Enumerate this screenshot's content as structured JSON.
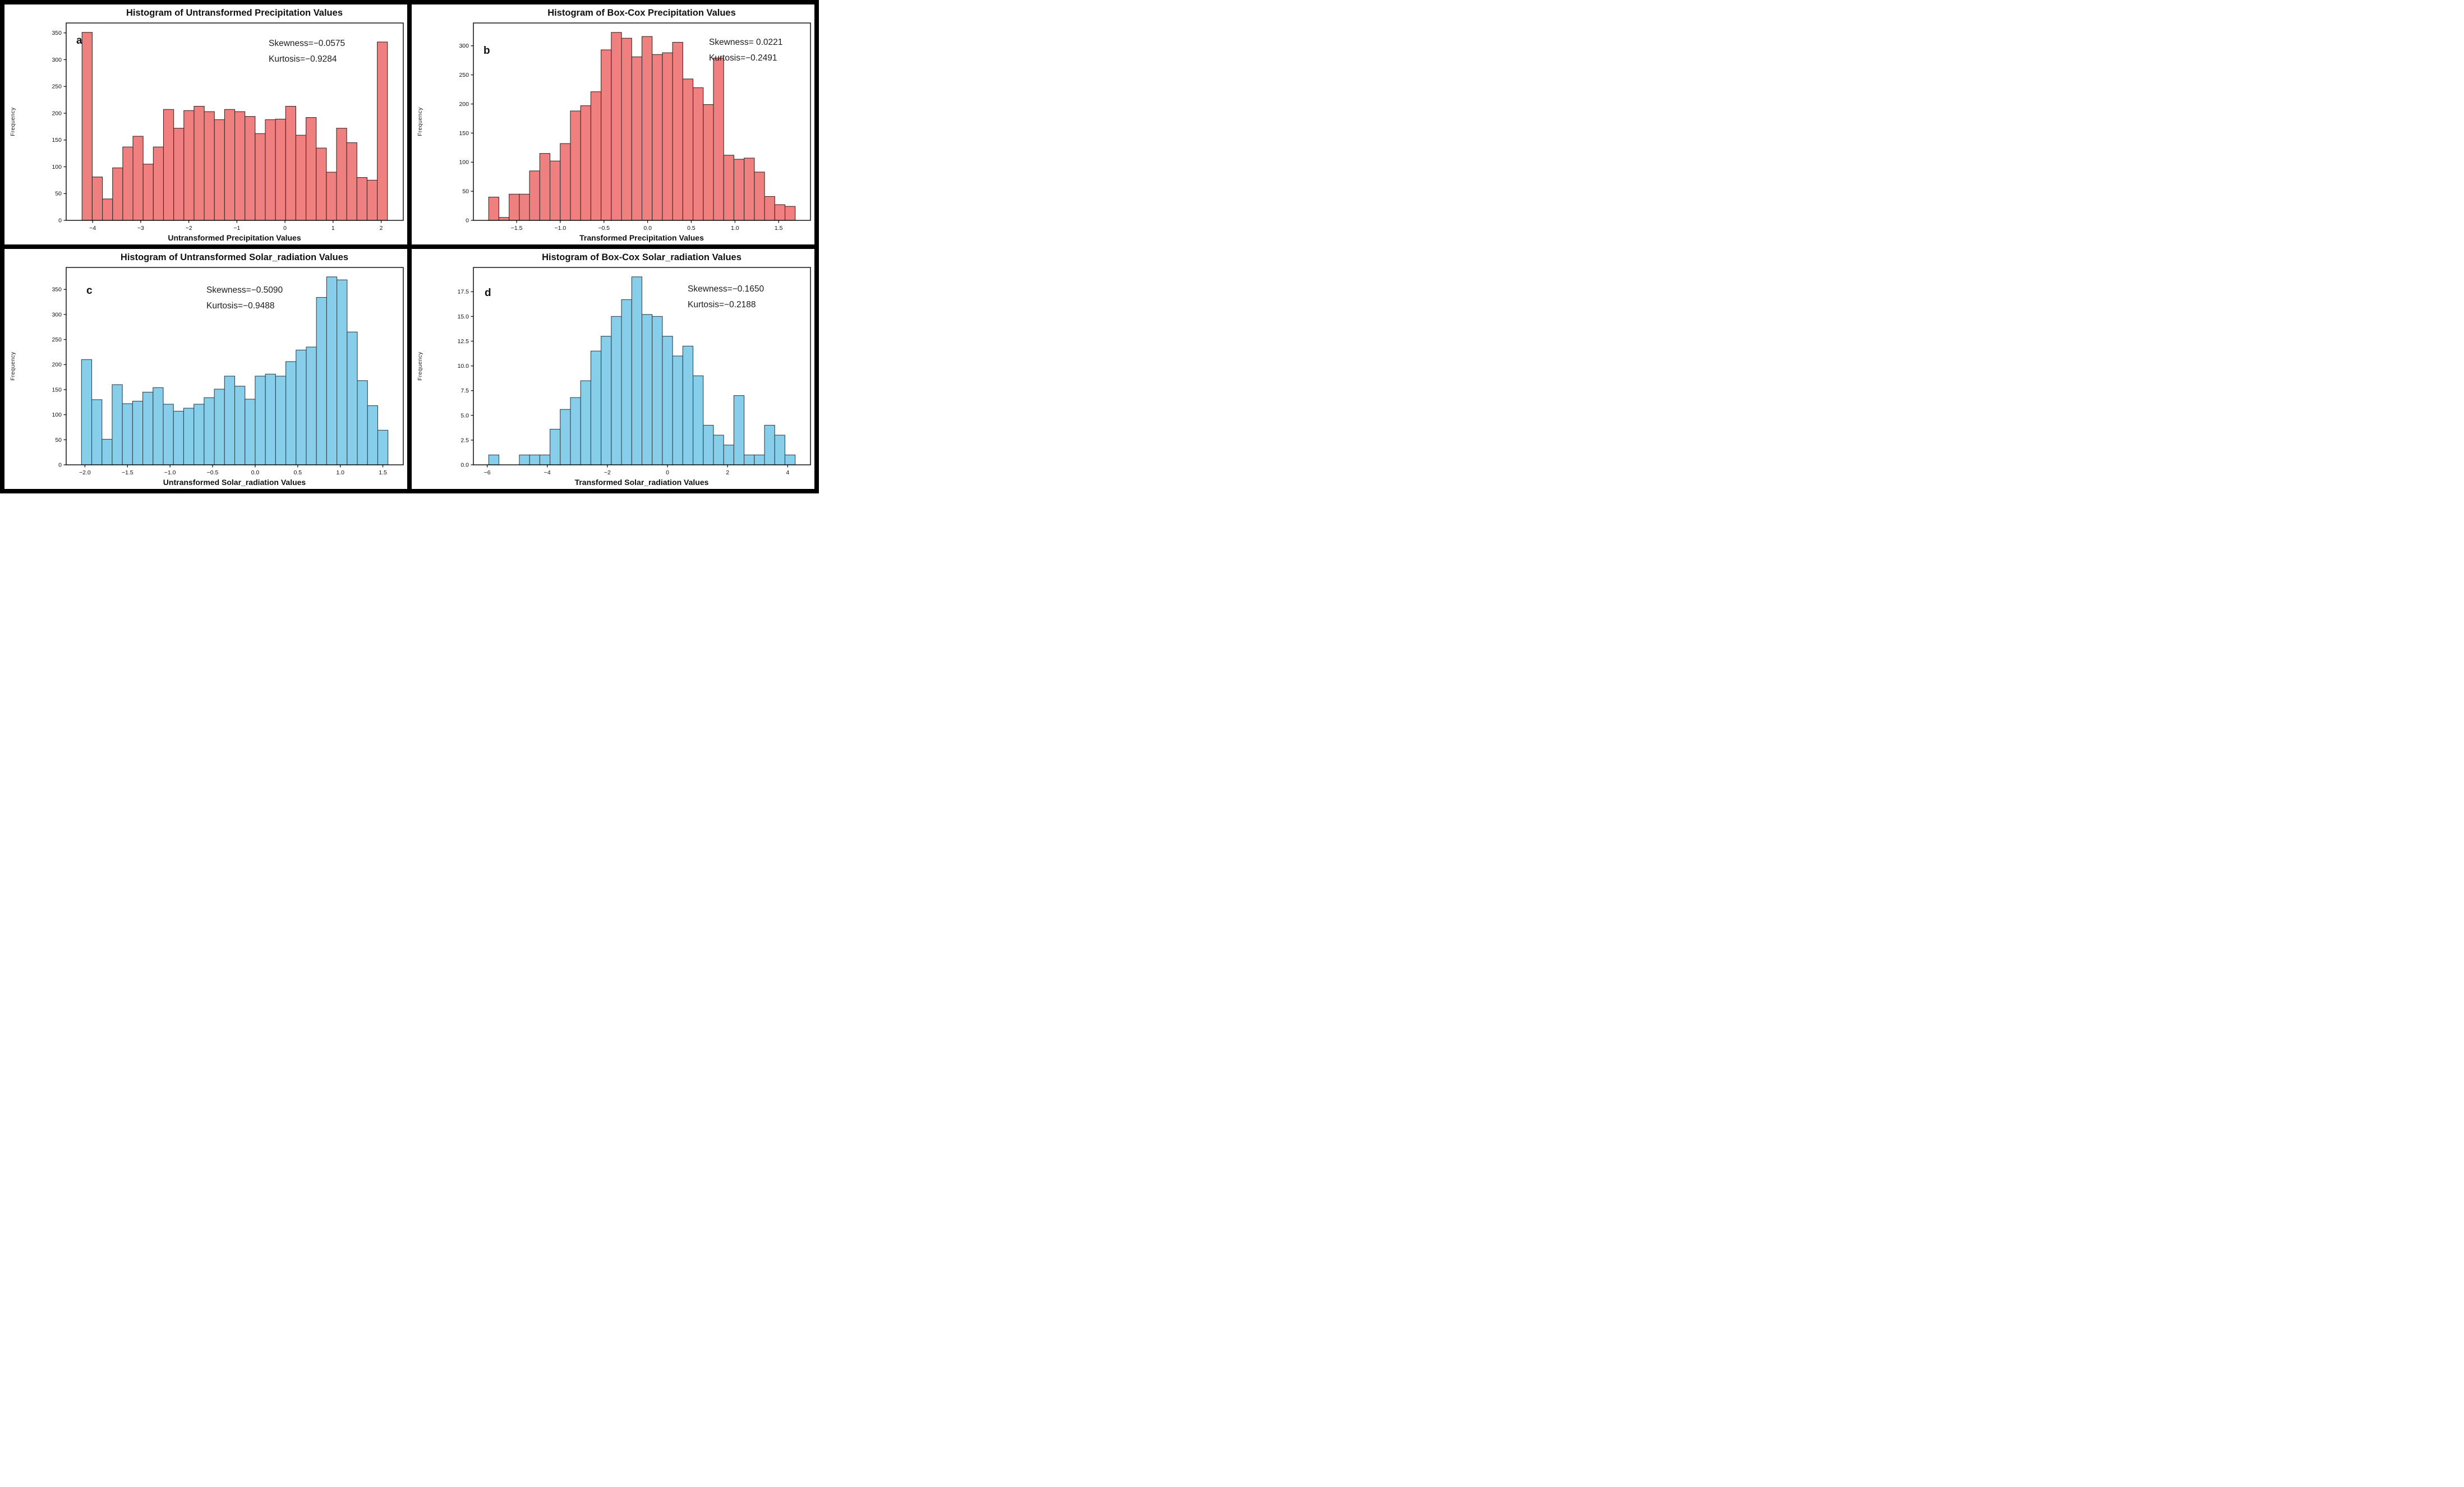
{
  "figure_title": "2x2 histogram grid of precipitation and solar radiation values before and after Box-Cox transformation",
  "accent_colors": {
    "red_fill": "#f08080",
    "red_edge": "#3a2a2a",
    "blue_fill": "#87ceeb",
    "blue_edge": "#35454e",
    "frame": "#000000"
  },
  "chart_data": [
    {
      "type": "bar",
      "panel_label": "a",
      "title": "Histogram of Untransformed Precipitation Values",
      "xlabel": "Untransformed Precipitation Values",
      "ylabel": "Frequency",
      "skewness_label": "Skewness=−0.0575",
      "kurtosis_label": "Kurtosis=−0.9284",
      "bar_color": "#f08080",
      "edge_color": "#3a2a2a",
      "bin_start": -4.22,
      "bin_width": 0.2117,
      "values": [
        351,
        81,
        40,
        98,
        137,
        157,
        105,
        137,
        207,
        172,
        205,
        213,
        203,
        188,
        207,
        203,
        194,
        162,
        188,
        189,
        213,
        159,
        192,
        135,
        90,
        172,
        145,
        80,
        75,
        333
      ],
      "xlim": [
        -4.55,
        2.46
      ],
      "ylim": [
        0,
        368.5
      ],
      "xticks": [
        -4,
        -3,
        -2,
        -1,
        0,
        1,
        2
      ],
      "xtick_labels": [
        "−4",
        "−3",
        "−2",
        "−1",
        "0",
        "1",
        "2"
      ],
      "yticks": [
        0,
        50,
        100,
        150,
        200,
        250,
        300,
        350
      ],
      "ytick_labels": [
        "0",
        "50",
        "100",
        "150",
        "200",
        "250",
        "300",
        "350"
      ],
      "grid": false,
      "legend": null
    },
    {
      "type": "bar",
      "panel_label": "b",
      "title": "Histogram of Box-Cox Precipitation Values",
      "xlabel": "Transformed Precipitation Values",
      "ylabel": "Frequency",
      "skewness_label": "Skewness= 0.0221",
      "kurtosis_label": "Kurtosis=−0.2491",
      "bar_color": "#f08080",
      "edge_color": "#3a2a2a",
      "bin_start": -1.82,
      "bin_width": 0.117,
      "values": [
        40,
        5,
        45,
        45,
        85,
        115,
        102,
        132,
        188,
        197,
        221,
        293,
        323,
        313,
        281,
        316,
        285,
        288,
        306,
        243,
        228,
        199,
        279,
        112,
        105,
        107,
        83,
        41,
        27,
        24
      ],
      "xlim": [
        -1.995,
        1.865
      ],
      "ylim": [
        0,
        339.2
      ],
      "xticks": [
        -1.5,
        -1.0,
        -0.5,
        0.0,
        0.5,
        1.0,
        1.5
      ],
      "xtick_labels": [
        "−1.5",
        "−1.0",
        "−0.5",
        "0.0",
        "0.5",
        "1.0",
        "1.5"
      ],
      "yticks": [
        0,
        50,
        100,
        150,
        200,
        250,
        300
      ],
      "ytick_labels": [
        "0",
        "50",
        "100",
        "150",
        "200",
        "250",
        "300"
      ],
      "grid": false,
      "legend": null
    },
    {
      "type": "bar",
      "panel_label": "c",
      "title": "Histogram of Untransformed Solar_radiation Values",
      "xlabel": "Untransformed Solar_radiation Values",
      "ylabel": "Frequency",
      "skewness_label": "Skewness=−0.5090",
      "kurtosis_label": "Kurtosis=−0.9488",
      "bar_color": "#87ceeb",
      "edge_color": "#35454e",
      "bin_start": -2.04,
      "bin_width": 0.12,
      "values": [
        210,
        130,
        51,
        160,
        122,
        127,
        145,
        154,
        121,
        107,
        113,
        121,
        134,
        151,
        177,
        157,
        131,
        177,
        181,
        177,
        206,
        229,
        235,
        334,
        375,
        369,
        265,
        168,
        118,
        69
      ],
      "xlim": [
        -2.22,
        1.74
      ],
      "ylim": [
        0,
        393.8
      ],
      "xticks": [
        -2.0,
        -1.5,
        -1.0,
        -0.5,
        0.0,
        0.5,
        1.0,
        1.5
      ],
      "xtick_labels": [
        "−2.0",
        "−1.5",
        "−1.0",
        "−0.5",
        "0.0",
        "0.5",
        "1.0",
        "1.5"
      ],
      "yticks": [
        0,
        50,
        100,
        150,
        200,
        250,
        300,
        350
      ],
      "ytick_labels": [
        "0",
        "50",
        "100",
        "150",
        "200",
        "250",
        "300",
        "350"
      ],
      "grid": false,
      "legend": null
    },
    {
      "type": "bar",
      "panel_label": "d",
      "title": "Histogram of Box-Cox Solar_radiation Values",
      "xlabel": "Transformed Solar_radiation Values",
      "ylabel": "Frequency",
      "skewness_label": "Skewness=−0.1650",
      "kurtosis_label": "Kurtosis=−0.2188",
      "bar_color": "#87ceeb",
      "edge_color": "#35454e",
      "bin_start": -5.95,
      "bin_width": 0.34,
      "values": [
        1,
        0,
        0,
        1,
        1,
        1,
        3.6,
        5.6,
        6.8,
        8.5,
        11.5,
        13,
        15,
        16.7,
        19,
        15.2,
        15,
        13,
        11,
        12,
        9,
        4,
        3,
        2,
        7,
        1,
        1,
        4,
        3,
        1
      ],
      "xlim": [
        -6.46,
        4.76
      ],
      "ylim": [
        0,
        19.95
      ],
      "xticks": [
        -6,
        -4,
        -2,
        0,
        2,
        4
      ],
      "xtick_labels": [
        "−6",
        "−4",
        "−2",
        "0",
        "2",
        "4"
      ],
      "yticks": [
        0,
        2.5,
        5,
        7.5,
        10,
        12.5,
        15,
        17.5
      ],
      "ytick_labels": [
        "0.0",
        "2.5",
        "5.0",
        "7.5",
        "10.0",
        "12.5",
        "15.0",
        "17.5"
      ],
      "grid": false,
      "legend": null
    }
  ],
  "stats_layout_note": "skewness/kurtosis annotation shown inside upper area of each plot"
}
